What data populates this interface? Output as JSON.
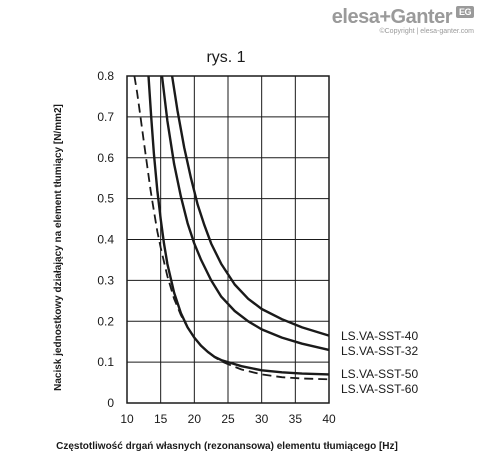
{
  "brand": {
    "logo_left": "elesa",
    "logo_plus": "+",
    "logo_right": "Ganter",
    "badge": "EG",
    "copyright": "©Copyright | elesa-ganter.com"
  },
  "chart_data": {
    "type": "line",
    "title": "rys. 1",
    "xlabel": "Częstotliwość drgań własnych (rezonansowa) elementu tłumiącego [Hz]",
    "ylabel": "Nacisk jednostkowy działający na element tłumiący [N/mm2]",
    "xlim": [
      10,
      40
    ],
    "ylim": [
      0,
      0.8
    ],
    "xticks": [
      10,
      15,
      20,
      25,
      30,
      35,
      40
    ],
    "yticks": [
      0,
      0.1,
      0.2,
      0.3,
      0.4,
      0.5,
      0.6,
      0.7,
      0.8
    ],
    "xtick_labels": [
      "10",
      "15",
      "20",
      "25",
      "30",
      "35",
      "40"
    ],
    "ytick_labels": [
      "0",
      "0.1",
      "0.2",
      "0.3",
      "0.4",
      "0.5",
      "0.6",
      "0.7",
      "0.8"
    ],
    "grid": true,
    "legend": "right",
    "series": [
      {
        "name": "LS.VA-SST-40",
        "style": "solid",
        "x": [
          16.7,
          17.5,
          18.5,
          19.5,
          20.5,
          21.5,
          22.5,
          24,
          26,
          28,
          30,
          33,
          36,
          40
        ],
        "y": [
          0.8,
          0.715,
          0.625,
          0.55,
          0.485,
          0.435,
          0.39,
          0.34,
          0.29,
          0.255,
          0.23,
          0.205,
          0.185,
          0.165
        ]
      },
      {
        "name": "LS.VA-SST-32",
        "style": "solid",
        "x": [
          15.2,
          16,
          17,
          18,
          19,
          20,
          21,
          22.5,
          24,
          26,
          28,
          30,
          33,
          36,
          40
        ],
        "y": [
          0.8,
          0.69,
          0.585,
          0.505,
          0.44,
          0.39,
          0.35,
          0.3,
          0.26,
          0.225,
          0.2,
          0.18,
          0.16,
          0.145,
          0.13
        ]
      },
      {
        "name": "LS.VA-SST-50",
        "style": "solid",
        "x": [
          13.2,
          13.6,
          14,
          14.5,
          15,
          15.5,
          16,
          17,
          18,
          19,
          20,
          21,
          22,
          23,
          24,
          25,
          27,
          30,
          33,
          36,
          40
        ],
        "y": [
          0.8,
          0.7,
          0.61,
          0.52,
          0.45,
          0.39,
          0.34,
          0.27,
          0.22,
          0.185,
          0.16,
          0.14,
          0.125,
          0.113,
          0.105,
          0.1,
          0.09,
          0.08,
          0.075,
          0.072,
          0.07
        ]
      },
      {
        "name": "LS.VA-SST-60",
        "style": "dashed",
        "x": [
          11.1,
          11.5,
          12,
          12.5,
          13,
          13.5,
          14,
          14.5,
          15,
          16,
          17,
          18,
          19,
          20,
          21,
          22,
          23,
          24,
          25,
          27,
          30,
          33,
          36,
          40
        ],
        "y": [
          0.8,
          0.76,
          0.7,
          0.64,
          0.58,
          0.52,
          0.47,
          0.42,
          0.38,
          0.31,
          0.255,
          0.215,
          0.185,
          0.16,
          0.14,
          0.125,
          0.112,
          0.102,
          0.095,
          0.082,
          0.07,
          0.063,
          0.06,
          0.058
        ]
      }
    ]
  }
}
